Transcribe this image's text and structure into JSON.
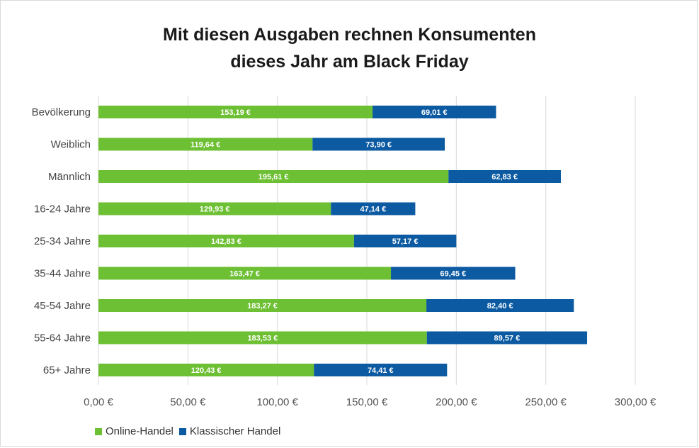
{
  "chart_data": {
    "type": "bar",
    "orientation": "horizontal",
    "stacked": true,
    "title_lines": [
      "Mit diesen Ausgaben rechnen Konsumenten",
      "dieses Jahr am Black Friday"
    ],
    "categories": [
      "Bevölkerung",
      "Weiblich",
      "Männlich",
      "16-24 Jahre",
      "25-34 Jahre",
      "35-44 Jahre",
      "45-54 Jahre",
      "55-64 Jahre",
      "65+ Jahre"
    ],
    "series": [
      {
        "name": "Online-Handel",
        "color": "#6dbf33",
        "values": [
          153.19,
          119.64,
          195.61,
          129.93,
          142.83,
          163.47,
          183.27,
          183.53,
          120.43
        ],
        "labels": [
          "153,19 €",
          "119,64 €",
          "195,61 €",
          "129,93 €",
          "142,83 €",
          "163,47 €",
          "183,27 €",
          "183,53 €",
          "120,43 €"
        ]
      },
      {
        "name": "Klassischer Handel",
        "color": "#0b5aa2",
        "values": [
          69.01,
          73.9,
          62.83,
          47.14,
          57.17,
          69.45,
          82.4,
          89.57,
          74.41
        ],
        "labels": [
          "69,01 €",
          "73,90 €",
          "62,83 €",
          "47,14 €",
          "57,17 €",
          "69,45 €",
          "82,40 €",
          "89,57 €",
          "74,41 €"
        ]
      }
    ],
    "xlim": [
      0,
      300
    ],
    "xticks": [
      0,
      50,
      100,
      150,
      200,
      250,
      300
    ],
    "xtick_labels": [
      "0,00 €",
      "50,00 €",
      "100,00 €",
      "150,00 €",
      "200,00 €",
      "250,00 €",
      "300,00 €"
    ],
    "grid": "vertical",
    "legend_position": "bottom-left"
  }
}
